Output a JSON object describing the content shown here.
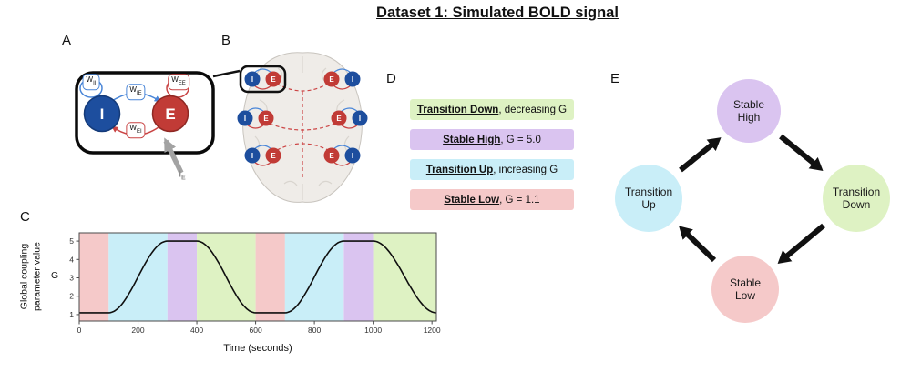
{
  "figure_title": "Dataset 1: Simulated BOLD signal",
  "panel_labels": {
    "a": "A",
    "b": "B",
    "c": "C",
    "d": "D",
    "e": "E"
  },
  "network": {
    "node_i": "I",
    "node_e": "E",
    "node_i_color": "#1d4e9e",
    "node_e_color": "#c13b36",
    "weights": {
      "ii": {
        "main": "W",
        "sub": "II"
      },
      "ee": {
        "main": "W",
        "sub": "EE"
      },
      "ie": {
        "main": "W",
        "sub": "IE"
      },
      "ei": {
        "main": "W",
        "sub": "EI"
      }
    },
    "external_input": {
      "main": "I",
      "sub": "E"
    }
  },
  "legend": {
    "items": [
      {
        "name": "Transition Down",
        "desc": ", decreasing G",
        "color": "#def2c3"
      },
      {
        "name": "Stable High",
        "desc": ", G = 5.0",
        "color": "#dac4f0"
      },
      {
        "name": "Transition Up",
        "desc": ", increasing G",
        "color": "#c9eef8"
      },
      {
        "name": "Stable Low",
        "desc": ", G = 1.1",
        "color": "#f5c9c9"
      }
    ]
  },
  "cycle": {
    "nodes": [
      {
        "label": "Stable High",
        "color": "#dac4f0"
      },
      {
        "label": "Transition Down",
        "color": "#def2c3"
      },
      {
        "label": "Stable Low",
        "color": "#f5c9c9"
      },
      {
        "label": "Transition Up",
        "color": "#c9eef8"
      }
    ]
  },
  "chart_data": {
    "type": "line",
    "title": "",
    "xlabel": "Time (seconds)",
    "ylabel": "Global coupling parameter value G",
    "ylabel_lines": [
      "Global coupling",
      "parameter value"
    ],
    "ylabel_unit": "G",
    "xlim": [
      0,
      1215
    ],
    "ylim": [
      0.65,
      5.45
    ],
    "xticks": [
      0,
      200,
      400,
      600,
      800,
      1000,
      1200
    ],
    "yticks": [
      1,
      2,
      3,
      4,
      5
    ],
    "grid": false,
    "legend_position": "none",
    "g_low": 1.1,
    "g_high": 5.0,
    "bands": [
      {
        "x0": 0,
        "x1": 100,
        "phase": "stable-low",
        "color": "#f5c9c9"
      },
      {
        "x0": 100,
        "x1": 300,
        "phase": "transition-up",
        "color": "#c9eef8"
      },
      {
        "x0": 300,
        "x1": 400,
        "phase": "stable-high",
        "color": "#dac4f0"
      },
      {
        "x0": 400,
        "x1": 600,
        "phase": "transition-down",
        "color": "#def2c3"
      },
      {
        "x0": 600,
        "x1": 700,
        "phase": "stable-low",
        "color": "#f5c9c9"
      },
      {
        "x0": 700,
        "x1": 900,
        "phase": "transition-up",
        "color": "#c9eef8"
      },
      {
        "x0": 900,
        "x1": 1000,
        "phase": "stable-high",
        "color": "#dac4f0"
      },
      {
        "x0": 1000,
        "x1": 1215,
        "phase": "transition-down",
        "color": "#def2c3"
      }
    ],
    "series": [
      {
        "name": "G",
        "keypoints": [
          [
            0,
            1.1
          ],
          [
            100,
            1.1
          ],
          [
            200,
            3.05
          ],
          [
            300,
            5.0
          ],
          [
            400,
            5.0
          ],
          [
            500,
            3.05
          ],
          [
            600,
            1.1
          ],
          [
            700,
            1.1
          ],
          [
            800,
            3.05
          ],
          [
            900,
            5.0
          ],
          [
            1000,
            5.0
          ],
          [
            1100,
            3.2
          ],
          [
            1200,
            1.2
          ]
        ]
      }
    ]
  }
}
